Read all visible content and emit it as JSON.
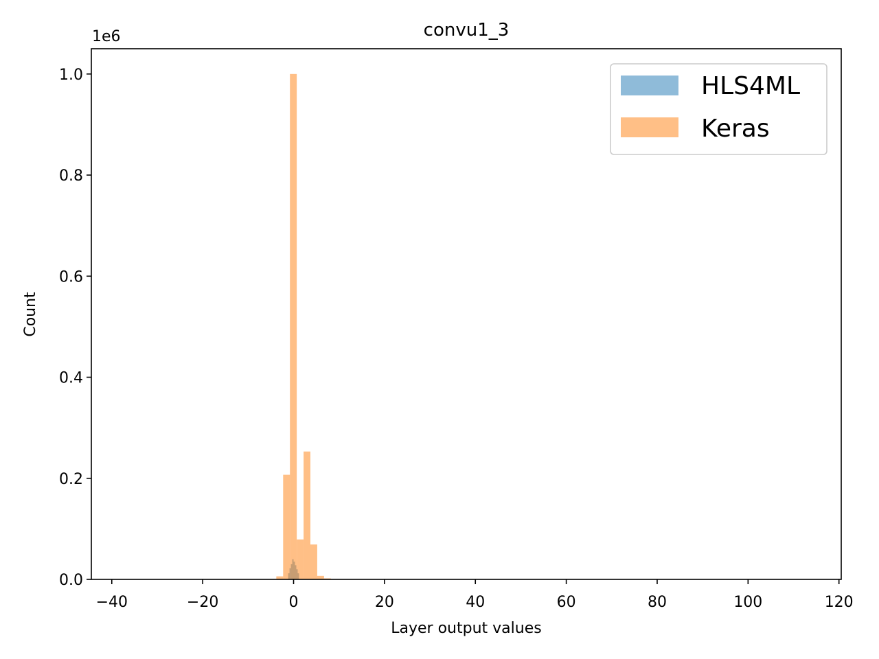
{
  "chart_data": {
    "type": "bar",
    "title": "convu1_3",
    "xlabel": "Layer output values",
    "ylabel": "Count",
    "y_offset_label": "1e6",
    "xlim": [
      -44.5,
      120.5
    ],
    "ylim": [
      0,
      1.05
    ],
    "x_ticks": [
      -40,
      -20,
      0,
      20,
      40,
      60,
      80,
      100,
      120
    ],
    "x_tick_labels": [
      "−40",
      "−20",
      "0",
      "20",
      "40",
      "60",
      "80",
      "100",
      "120"
    ],
    "y_ticks": [
      0.0,
      0.2,
      0.4,
      0.6,
      0.8,
      1.0
    ],
    "y_tick_labels": [
      "0.0",
      "0.2",
      "0.4",
      "0.6",
      "0.8",
      "1.0"
    ],
    "grid": false,
    "legend_position": "top-right",
    "series": [
      {
        "name": "HLS4ML",
        "color": "#1f77b4",
        "opacity": 0.5,
        "bins": [
          {
            "x0": -1.2,
            "x1": -0.9,
            "y": 0.012
          },
          {
            "x0": -0.9,
            "x1": -0.6,
            "y": 0.022
          },
          {
            "x0": -0.6,
            "x1": -0.3,
            "y": 0.03
          },
          {
            "x0": -0.3,
            "x1": 0.0,
            "y": 0.04
          },
          {
            "x0": 0.0,
            "x1": 0.3,
            "y": 0.035
          },
          {
            "x0": 0.3,
            "x1": 0.6,
            "y": 0.028
          },
          {
            "x0": 0.6,
            "x1": 0.9,
            "y": 0.02
          },
          {
            "x0": 0.9,
            "x1": 1.2,
            "y": 0.012
          }
        ]
      },
      {
        "name": "Keras",
        "color": "#ff7f0e",
        "opacity": 0.5,
        "bins": [
          {
            "x0": -3.8,
            "x1": -2.3,
            "y": 0.006
          },
          {
            "x0": -2.3,
            "x1": -0.8,
            "y": 0.207
          },
          {
            "x0": -0.8,
            "x1": 0.7,
            "y": 1.0
          },
          {
            "x0": 0.7,
            "x1": 2.2,
            "y": 0.079
          },
          {
            "x0": 2.2,
            "x1": 3.7,
            "y": 0.253
          },
          {
            "x0": 3.7,
            "x1": 5.2,
            "y": 0.069
          },
          {
            "x0": 5.2,
            "x1": 6.7,
            "y": 0.007
          },
          {
            "x0": 6.7,
            "x1": 8.2,
            "y": 0.002
          }
        ]
      }
    ]
  }
}
